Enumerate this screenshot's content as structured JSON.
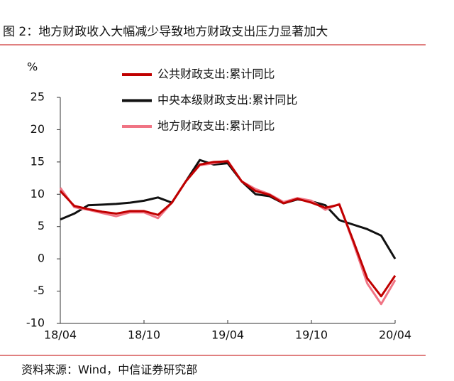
{
  "chart_data": {
    "type": "line",
    "title": "图 2：地方财政收入大幅减少导致地方财政支出压力显著加大",
    "y_label": "%",
    "source": "资料来源：Wind，中信证券研究部",
    "categories": [
      "18/04",
      null,
      null,
      null,
      null,
      null,
      "18/10",
      null,
      null,
      null,
      null,
      null,
      "19/04",
      null,
      null,
      null,
      null,
      null,
      "19/10",
      null,
      null,
      null,
      null,
      null,
      "20/04"
    ],
    "ylim": [
      -10,
      25
    ],
    "yticks": [
      -10,
      -5,
      0,
      5,
      10,
      15,
      20,
      25
    ],
    "series": [
      {
        "name": "公共财政支出:累计同比",
        "color": "#c00000",
        "values": [
          10.5,
          8.2,
          7.7,
          7.3,
          7.0,
          7.4,
          7.4,
          6.8,
          8.7,
          12.0,
          14.6,
          15.0,
          15.1,
          12.0,
          10.5,
          9.9,
          8.6,
          9.3,
          8.7,
          7.9,
          8.4,
          2.8,
          -3.0,
          -5.8,
          -2.6
        ]
      },
      {
        "name": "中央本级财政支出:累计同比",
        "color": "#111111",
        "values": [
          6.1,
          7.0,
          8.3,
          8.4,
          8.5,
          8.7,
          9.0,
          9.5,
          8.7,
          12.0,
          15.3,
          14.6,
          14.8,
          12.0,
          10.0,
          9.7,
          8.6,
          9.2,
          8.9,
          8.3,
          6.0,
          5.3,
          4.6,
          3.6,
          0.0
        ]
      },
      {
        "name": "地方财政支出:累计同比",
        "color": "#f07484",
        "values": [
          11.0,
          8.0,
          7.6,
          7.1,
          6.6,
          7.2,
          7.2,
          6.3,
          8.7,
          12.0,
          14.5,
          14.8,
          15.2,
          12.0,
          10.8,
          10.0,
          8.8,
          9.4,
          9.0,
          7.6,
          8.5,
          2.5,
          -3.8,
          -7.0,
          -3.3
        ]
      }
    ]
  }
}
